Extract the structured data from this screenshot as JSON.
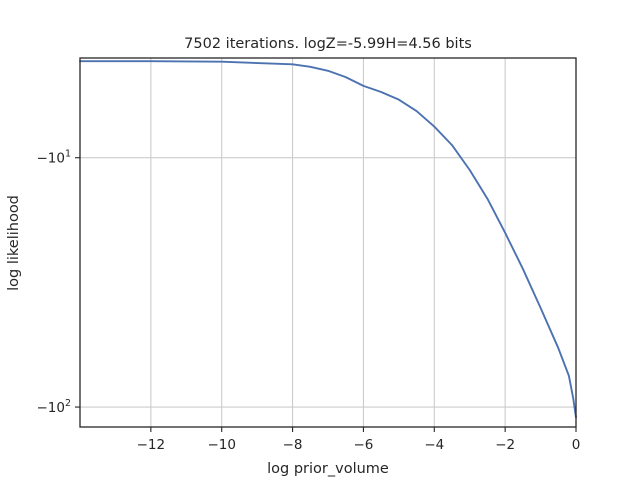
{
  "chart_data": {
    "type": "line",
    "title": "7502 iterations. logZ=-5.99H=4.56 bits",
    "xlabel": "log prior_volume",
    "ylabel": "log likelihood",
    "xlim": [
      -14,
      0
    ],
    "ylim_log_magnitude": [
      0.6,
      2.08
    ],
    "yscale": "symlog (negative values, log-magnitude)",
    "grid": true,
    "x_ticks": [
      -12,
      -10,
      -8,
      -6,
      -4,
      -2,
      0
    ],
    "x_tick_labels": [
      "−12",
      "−10",
      "−8",
      "−6",
      "−4",
      "−2",
      "0"
    ],
    "y_ticks": [
      -10,
      -100
    ],
    "y_tick_labels": [
      {
        "base": "−10",
        "exp": "1"
      },
      {
        "base": "−10",
        "exp": "2"
      }
    ],
    "line_color": "#4c72b0",
    "series": [
      {
        "values": [
          {
            "x": -14.0,
            "y": -4.1
          },
          {
            "x": -12.0,
            "y": -4.1
          },
          {
            "x": -10.0,
            "y": -4.12
          },
          {
            "x": -8.0,
            "y": -4.22
          },
          {
            "x": -7.5,
            "y": -4.32
          },
          {
            "x": -7.0,
            "y": -4.48
          },
          {
            "x": -6.5,
            "y": -4.75
          },
          {
            "x": -6.0,
            "y": -5.15
          },
          {
            "x": -5.5,
            "y": -5.45
          },
          {
            "x": -5.0,
            "y": -5.85
          },
          {
            "x": -4.5,
            "y": -6.5
          },
          {
            "x": -4.0,
            "y": -7.5
          },
          {
            "x": -3.5,
            "y": -8.9
          },
          {
            "x": -3.0,
            "y": -11.2
          },
          {
            "x": -2.5,
            "y": -14.6
          },
          {
            "x": -2.0,
            "y": -20.0
          },
          {
            "x": -1.5,
            "y": -27.9
          },
          {
            "x": -1.0,
            "y": -40.0
          },
          {
            "x": -0.5,
            "y": -58.0
          },
          {
            "x": -0.2,
            "y": -75.0
          },
          {
            "x": -0.08,
            "y": -92.0
          },
          {
            "x": 0.0,
            "y": -110.0
          }
        ]
      }
    ]
  }
}
